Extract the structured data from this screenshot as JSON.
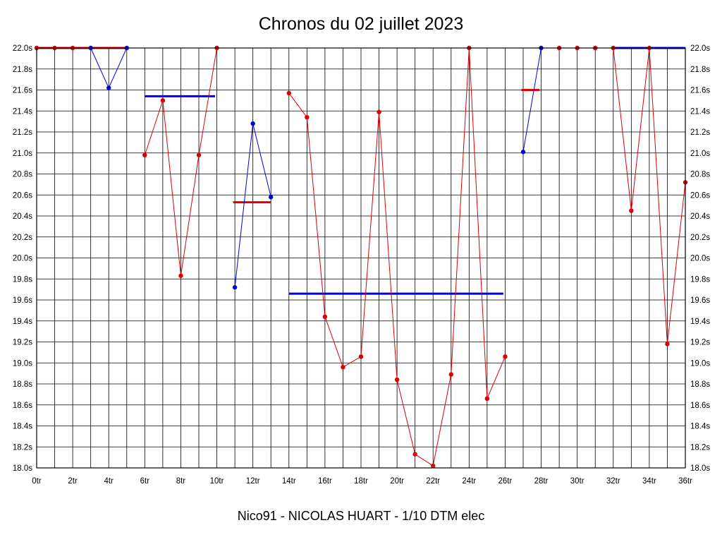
{
  "chart_data": {
    "type": "line",
    "title": "Chronos du 02 juillet 2023",
    "footer": "Nico91 - NICOLAS HUART - 1/10 DTM elec",
    "xlabel": "",
    "ylabel": "",
    "x_unit": "tr",
    "y_unit": "s",
    "xlim": [
      0,
      36
    ],
    "ylim": [
      18.0,
      22.0
    ],
    "x_tick_step": 2,
    "y_tick_step": 0.2,
    "grid": true,
    "grid_color": "#000000",
    "axis_color": "#000000",
    "x_tick_labels": [
      "0tr",
      "2tr",
      "4tr",
      "6tr",
      "8tr",
      "10tr",
      "12tr",
      "14tr",
      "16tr",
      "18tr",
      "20tr",
      "22tr",
      "24tr",
      "26tr",
      "28tr",
      "30tr",
      "32tr",
      "34tr",
      "36tr"
    ],
    "y_tick_labels": [
      "22.0s",
      "21.8s",
      "21.6s",
      "21.4s",
      "21.2s",
      "21.0s",
      "20.8s",
      "20.6s",
      "20.4s",
      "20.2s",
      "20.0s",
      "19.8s",
      "19.6s",
      "19.4s",
      "19.2s",
      "19.0s",
      "18.8s",
      "18.6s",
      "18.4s",
      "18.2s",
      "18.0s"
    ],
    "colors": {
      "red": "#dd0000",
      "blue": "#0000dd"
    },
    "series": [
      {
        "name": "run-1-red",
        "color": "#dd0000",
        "points": [
          [
            0,
            22.0
          ],
          [
            1,
            22.0
          ],
          [
            2,
            22.0
          ]
        ]
      },
      {
        "name": "run-1-blue",
        "color": "#0000dd",
        "points": [
          [
            3,
            22.0
          ],
          [
            4,
            21.62
          ],
          [
            5,
            22.0
          ]
        ]
      },
      {
        "name": "run-2-red",
        "color": "#dd0000",
        "points": [
          [
            6,
            20.98
          ],
          [
            7,
            21.5
          ],
          [
            8,
            19.83
          ],
          [
            9,
            20.98
          ],
          [
            10,
            22.0
          ]
        ]
      },
      {
        "name": "run-3-blue",
        "color": "#0000dd",
        "points": [
          [
            11,
            19.72
          ],
          [
            12,
            21.28
          ],
          [
            13,
            20.58
          ]
        ]
      },
      {
        "name": "run-4-red",
        "color": "#dd0000",
        "points": [
          [
            14,
            21.57
          ],
          [
            15,
            21.34
          ],
          [
            16,
            19.44
          ],
          [
            17,
            18.96
          ],
          [
            18,
            19.06
          ],
          [
            19,
            21.39
          ],
          [
            20,
            18.84
          ],
          [
            21,
            18.13
          ],
          [
            22,
            18.02
          ],
          [
            23,
            18.89
          ],
          [
            24,
            22.0
          ],
          [
            25,
            18.66
          ],
          [
            26,
            19.06
          ]
        ]
      },
      {
        "name": "run-5-blue",
        "color": "#0000dd",
        "points": [
          [
            27,
            21.01
          ],
          [
            28,
            22.0
          ]
        ]
      },
      {
        "name": "run-6-red",
        "color": "#dd0000",
        "points": [
          [
            29,
            22.0
          ],
          [
            30,
            22.0
          ],
          [
            31,
            22.0
          ],
          [
            32,
            22.0
          ],
          [
            33,
            20.45
          ],
          [
            34,
            22.0
          ],
          [
            35,
            19.18
          ],
          [
            36,
            20.72
          ]
        ]
      }
    ],
    "average_lines": [
      {
        "name": "avg-run-1",
        "color": "#dd0000",
        "x1": 0,
        "x2": 5.1,
        "y": 22.0
      },
      {
        "name": "avg-run-2",
        "color": "#0000dd",
        "x1": 6,
        "x2": 9.9,
        "y": 21.54
      },
      {
        "name": "avg-run-3",
        "color": "#dd0000",
        "x1": 10.9,
        "x2": 13,
        "y": 20.53
      },
      {
        "name": "avg-run-4",
        "color": "#0000dd",
        "x1": 14,
        "x2": 25.9,
        "y": 19.66
      },
      {
        "name": "avg-run-5",
        "color": "#dd0000",
        "x1": 26.9,
        "x2": 27.9,
        "y": 21.6
      },
      {
        "name": "avg-run-6",
        "color": "#0000dd",
        "x1": 32,
        "x2": 36,
        "y": 22.0
      }
    ]
  }
}
